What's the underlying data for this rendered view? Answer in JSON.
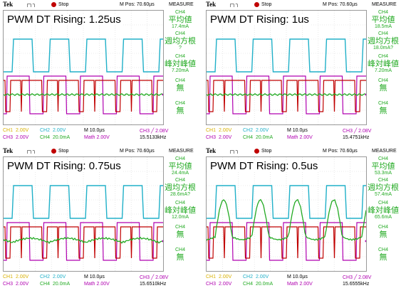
{
  "panels": [
    {
      "title": "PWM DT Rising: 1.25us",
      "header": {
        "brand": "Tek",
        "trigger": "┌┐┐",
        "status": "Stop",
        "mpos": "M Pos: 70.60µs",
        "measure": "MEASURE"
      },
      "measurements": [
        {
          "ch": "CH4",
          "label": "平均値",
          "value": "17.4mA",
          "mark": ""
        },
        {
          "ch": "CH4",
          "label": "週均方根",
          "value": "",
          "mark": "?"
        },
        {
          "ch": "CH4",
          "label": "峰対峰値",
          "value": "7.20mA",
          "mark": ""
        },
        {
          "ch": "CH4",
          "label": "無",
          "value": "",
          "mark": ""
        },
        {
          "ch": "CH4",
          "label": "無",
          "value": "",
          "mark": ""
        }
      ],
      "footer": {
        "ch1": "CH1",
        "ch1v": "2.00V",
        "ch2": "CH2",
        "ch2v": "2.00V",
        "m": "M 10.0µs",
        "ch3trig": "CH3 ╱ 2.08V",
        "ch3": "CH3",
        "ch3v": "2.00V",
        "ch4": "CH4",
        "ch4v": "20.0mA",
        "math": "Math 2.00V",
        "freq": "15.5133kHz"
      },
      "green": "flat"
    },
    {
      "title": "PWM DT Rising: 1us",
      "header": {
        "brand": "Tek",
        "trigger": "┌┐┐",
        "status": "Stop",
        "mpos": "M Pos: 70.60µs",
        "measure": "MEASURE"
      },
      "measurements": [
        {
          "ch": "CH4",
          "label": "平均値",
          "value": "18.5mA",
          "mark": ""
        },
        {
          "ch": "CH4",
          "label": "週均方根",
          "value": "18.0mA?",
          "mark": ""
        },
        {
          "ch": "CH4",
          "label": "峰対峰値",
          "value": "7.20mA",
          "mark": ""
        },
        {
          "ch": "CH4",
          "label": "無",
          "value": "",
          "mark": ""
        },
        {
          "ch": "CH4",
          "label": "無",
          "value": "",
          "mark": ""
        }
      ],
      "footer": {
        "ch1": "CH1",
        "ch1v": "2.00V",
        "ch2": "CH2",
        "ch2v": "2.00V",
        "m": "M 10.0µs",
        "ch3trig": "CH3 ╱ 2.08V",
        "ch3": "CH3",
        "ch3v": "2.00V",
        "ch4": "CH4",
        "ch4v": "20.0mA",
        "math": "Math 2.00V",
        "freq": "15.4751kHz"
      },
      "green": "flat"
    },
    {
      "title": "PWM DT Rising: 0.75us",
      "header": {
        "brand": "Tek",
        "trigger": "┌┐┐",
        "status": "Stop",
        "mpos": "M Pos: 70.60µs",
        "measure": "MEASURE"
      },
      "measurements": [
        {
          "ch": "CH4",
          "label": "平均値",
          "value": "24.4mA",
          "mark": ""
        },
        {
          "ch": "CH4",
          "label": "週均方根",
          "value": "28.6mA?",
          "mark": ""
        },
        {
          "ch": "CH4",
          "label": "峰対峰値",
          "value": "12.0mA",
          "mark": ""
        },
        {
          "ch": "CH4",
          "label": "無",
          "value": "",
          "mark": ""
        },
        {
          "ch": "CH4",
          "label": "無",
          "value": "",
          "mark": ""
        }
      ],
      "footer": {
        "ch1": "CH1",
        "ch1v": "2.00V",
        "ch2": "CH2",
        "ch2v": "2.00V",
        "m": "M 10.0µs",
        "ch3trig": "CH3 ╱ 2.08V",
        "ch3": "CH3",
        "ch3v": "2.00V",
        "ch4": "CH4",
        "ch4v": "20.0mA",
        "math": "Math 2.00V",
        "freq": "15.6510kHz"
      },
      "green": "bump"
    },
    {
      "title": "PWM DT Rising: 0.5us",
      "header": {
        "brand": "Tek",
        "trigger": "┌┐┐",
        "status": "Stop",
        "mpos": "M Pos: 70.60µs",
        "measure": "MEASURE"
      },
      "measurements": [
        {
          "ch": "CH4",
          "label": "平均値",
          "value": "53.3mA",
          "mark": ""
        },
        {
          "ch": "CH4",
          "label": "週均方根",
          "value": "57.4mA",
          "mark": ""
        },
        {
          "ch": "CH4",
          "label": "峰対峰値",
          "value": "65.6mA",
          "mark": ""
        },
        {
          "ch": "CH4",
          "label": "無",
          "value": "",
          "mark": ""
        },
        {
          "ch": "CH4",
          "label": "無",
          "value": "",
          "mark": ""
        }
      ],
      "footer": {
        "ch1": "CH1",
        "ch1v": "2.00V",
        "ch2": "CH2",
        "ch2v": "2.00V",
        "m": "M 10.0µs",
        "ch3trig": "CH3 ╱ 2.08V",
        "ch3": "CH3",
        "ch3v": "2.00V",
        "ch4": "CH4",
        "ch4v": "20.0mA",
        "math": "Math 2.00V",
        "freq": "15.6555kHz"
      },
      "green": "spike"
    }
  ],
  "colors": {
    "ch1": "#d8b000",
    "ch2": "#20b0c8",
    "ch3": "#b000b0",
    "ch4": "#22aa22",
    "trace_red": "#c00000"
  }
}
